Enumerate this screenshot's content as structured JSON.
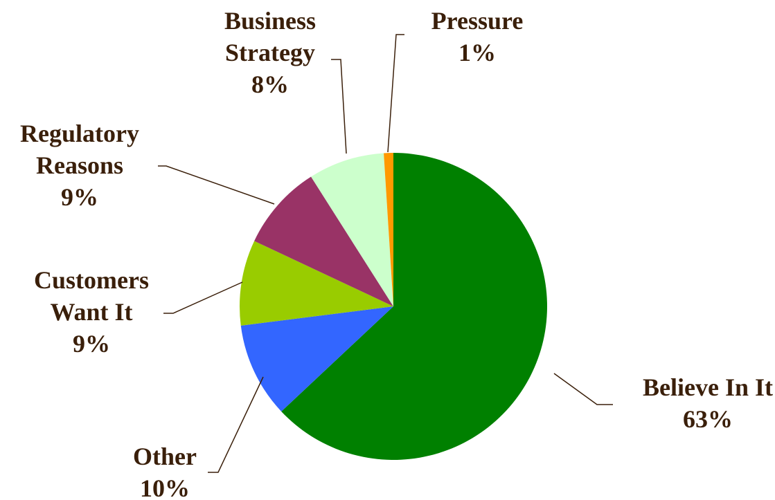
{
  "chart_data": {
    "type": "pie",
    "title": "",
    "slices": [
      {
        "name": "Believe In It",
        "value": 63,
        "label": "63%",
        "color": "#008000"
      },
      {
        "name": "Other",
        "value": 10,
        "label": "10%",
        "color": "#3366ff"
      },
      {
        "name": "Customers Want It",
        "value": 9,
        "label": "9%",
        "color": "#99cc00"
      },
      {
        "name": "Regulatory Reasons",
        "value": 9,
        "label": "9%",
        "color": "#993366"
      },
      {
        "name": "Business Strategy",
        "value": 8,
        "label": "8%",
        "color": "#ccffcc"
      },
      {
        "name": "Pressure",
        "value": 1,
        "label": "1%",
        "color": "#ff9900"
      }
    ],
    "label_lines": [
      [
        "Believe In It",
        "63%"
      ],
      [
        "Other",
        "10%"
      ],
      [
        "Customers",
        "Want It",
        "9%"
      ],
      [
        "Regulatory",
        "Reasons",
        "9%"
      ],
      [
        "Business",
        "Strategy",
        "8%"
      ],
      [
        "Pressure",
        "1%"
      ]
    ],
    "start_position": "top",
    "direction": "clockwise",
    "legend": "none",
    "label_color": "#3a1f0a"
  }
}
